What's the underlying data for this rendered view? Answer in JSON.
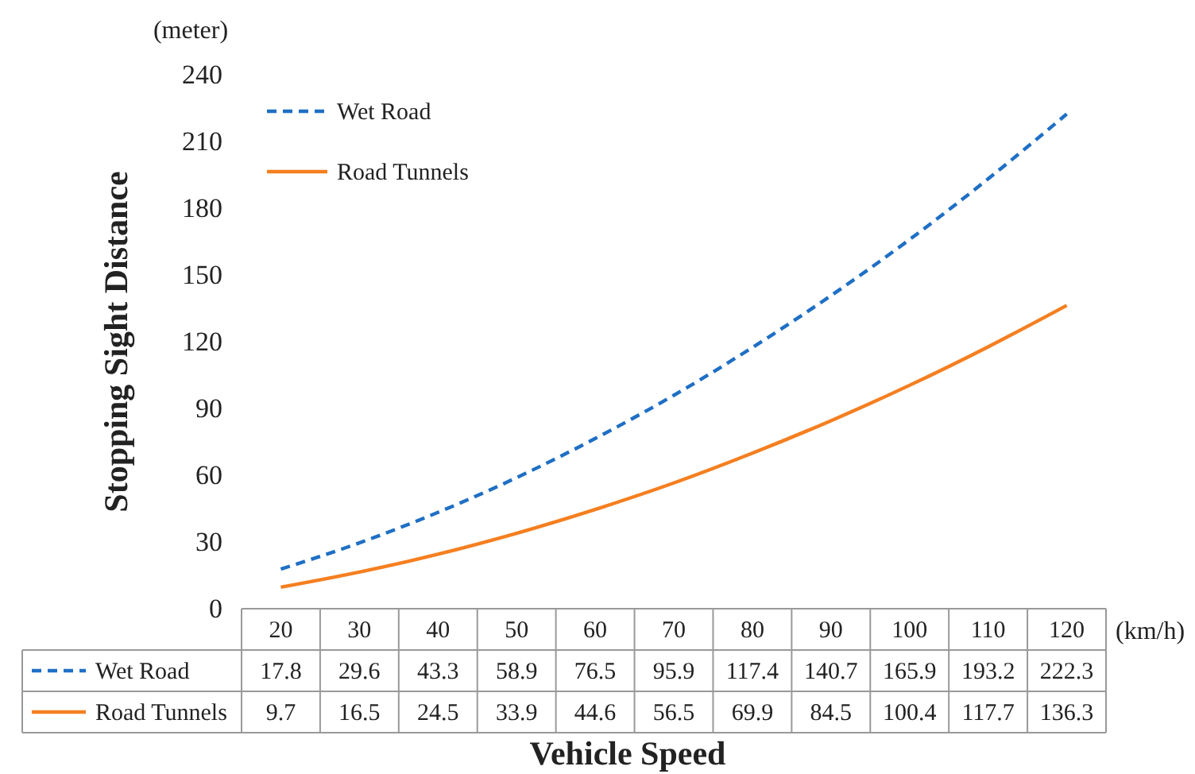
{
  "chart_data": {
    "type": "line",
    "xlabel": "Vehicle Speed",
    "ylabel": "Stopping Sight Distance",
    "categories": [
      "20",
      "30",
      "40",
      "50",
      "60",
      "70",
      "80",
      "90",
      "100",
      "110",
      "120"
    ],
    "series": [
      {
        "name": "Wet Road",
        "color": "#1f6fc5",
        "line_style": "dashed",
        "values": [
          17.8,
          29.6,
          43.3,
          58.9,
          76.5,
          95.9,
          117.4,
          140.7,
          165.9,
          193.2,
          222.3
        ]
      },
      {
        "name": "Road Tunnels",
        "color": "#f57f20",
        "line_style": "solid",
        "values": [
          9.7,
          16.5,
          24.5,
          33.9,
          44.6,
          56.5,
          69.9,
          84.5,
          100.4,
          117.7,
          136.3
        ]
      }
    ],
    "ylim": [
      0,
      240
    ],
    "yticks": [
      0,
      30,
      60,
      90,
      120,
      150,
      180,
      210,
      240
    ],
    "grid": false,
    "legend": "top left",
    "marker": "none",
    "data_labels": true,
    "annotations": [
      "(meter)",
      "(km/h)"
    ]
  }
}
